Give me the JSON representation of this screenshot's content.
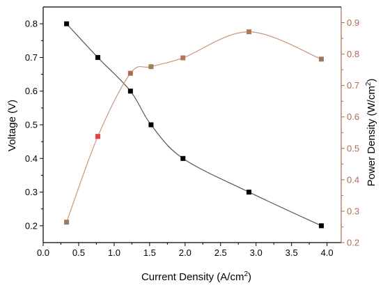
{
  "chart_data": {
    "type": "line",
    "title": "",
    "x_axis": {
      "label": "Current Density (A/cm",
      "label_sup": "2",
      "label_end": ")",
      "range": [
        0,
        4.2
      ],
      "ticks": [
        "0.0",
        "0.5",
        "1.0",
        "1.5",
        "2.0",
        "2.5",
        "3.0",
        "3.5",
        "4.0"
      ]
    },
    "y_left": {
      "label": "Voltage (V)",
      "range": [
        0.15,
        0.85
      ],
      "ticks": [
        "0.2",
        "0.3",
        "0.4",
        "0.5",
        "0.6",
        "0.7",
        "0.8"
      ]
    },
    "y_right": {
      "label": "Power Density (W/cm",
      "label_sup": "2",
      "label_end": ")",
      "range": [
        0.2,
        0.95
      ],
      "ticks": [
        "0.2",
        "0.3",
        "0.4",
        "0.5",
        "0.6",
        "0.7",
        "0.8",
        "0.9"
      ]
    },
    "grid": false,
    "legend": "none",
    "series": [
      {
        "axis": "left",
        "color": "#000000",
        "line_color": "#555555",
        "x": [
          0.33,
          0.77,
          1.23,
          1.52,
          1.97,
          2.9,
          3.92
        ],
        "y": [
          0.8,
          0.7,
          0.6,
          0.5,
          0.4,
          0.3,
          0.2
        ]
      },
      {
        "axis": "right",
        "color": "#a0785a",
        "line_color": "#c8967a",
        "marker_colors": [
          "#a0785a",
          "#e04040",
          "#b06a50",
          "#9c8058",
          "#b07a5a",
          "#b07a5a",
          "#a0785a"
        ],
        "x": [
          0.33,
          0.77,
          1.23,
          1.52,
          1.97,
          2.9,
          3.92
        ],
        "y": [
          0.265,
          0.538,
          0.739,
          0.76,
          0.788,
          0.871,
          0.784
        ]
      }
    ],
    "colors": {
      "left_axis": "#000000",
      "right_axis": "#b06a50",
      "right_title": "#000000"
    }
  }
}
